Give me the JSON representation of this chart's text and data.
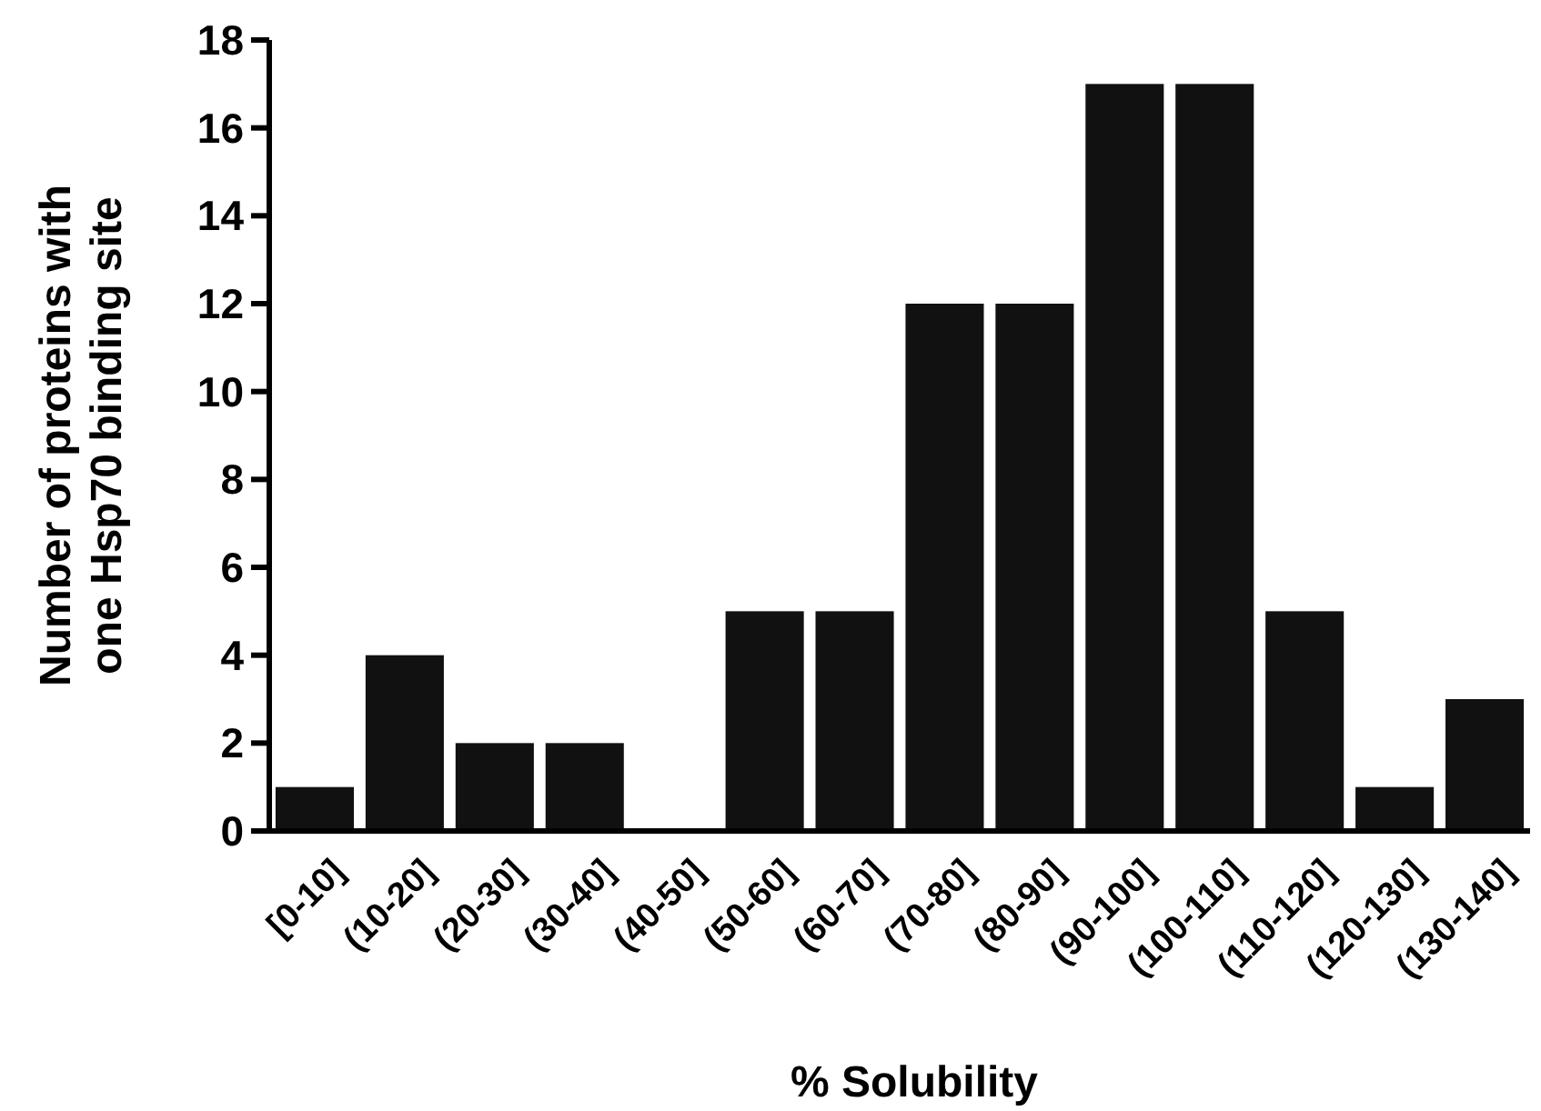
{
  "chart_data": {
    "type": "bar",
    "categories": [
      "[0-10]",
      "(10-20]",
      "(20-30]",
      "(30-40]",
      "(40-50]",
      "(50-60]",
      "(60-70]",
      "(70-80]",
      "(80-90]",
      "(90-100]",
      "(100-110]",
      "(110-120]",
      "(120-130]",
      "(130-140]"
    ],
    "values": [
      1,
      4,
      2,
      2,
      0,
      5,
      5,
      12,
      12,
      17,
      17,
      5,
      1,
      3
    ],
    "color": "#111111",
    "xlabel": "% Solubility",
    "ylabel": "Number of proteins with\none Hsp70 binding site",
    "ylim": [
      0,
      18
    ],
    "yticks": [
      0,
      2,
      4,
      6,
      8,
      10,
      12,
      14,
      16,
      18
    ]
  }
}
